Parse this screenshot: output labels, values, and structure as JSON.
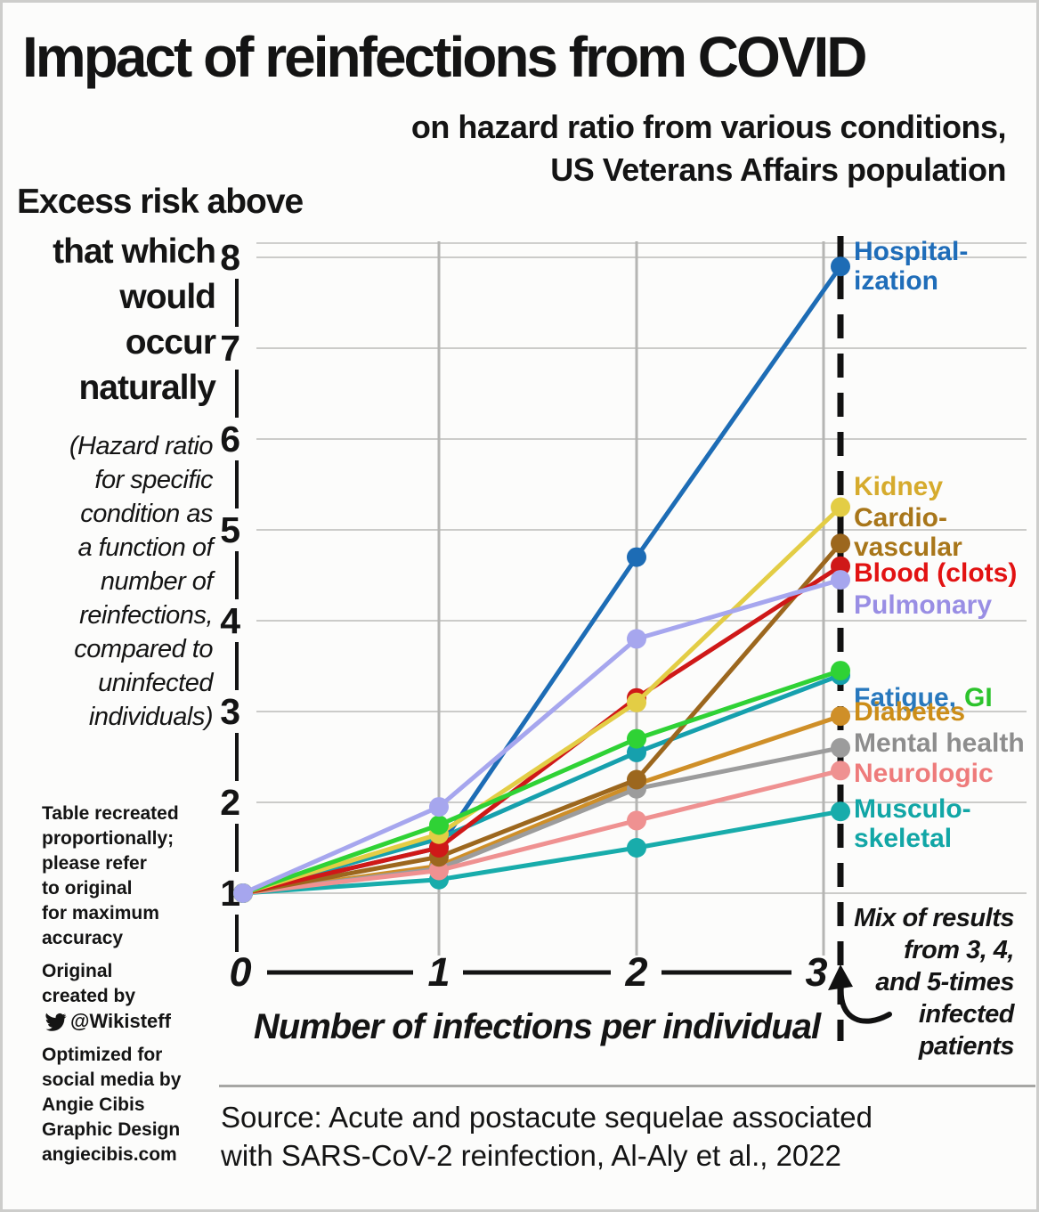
{
  "header": {
    "title": "Impact of reinfections from COVID",
    "subtitle": "on hazard ratio from various conditions,\nUS Veterans Affairs population"
  },
  "y_axis": {
    "title_line1": "Excess risk above",
    "title_rest": "that which\nwould\noccur\nnaturally",
    "subtitle": "(Hazard ratio\nfor specific\ncondition as\na function of\nnumber of\nreinfections,\ncompared to\nuninfected\nindividuals)"
  },
  "x_axis": {
    "title": "Number of infections per individual"
  },
  "notes": {
    "accuracy": "Table recreated\nproportionally;\nplease refer\nto original\nfor maximum\naccuracy",
    "original_credit": "Original\ncreated by",
    "twitter_handle": "@Wikisteff",
    "optimized": "Optimized for\nsocial media by\nAngie Cibis\nGraphic Design\nangiecibis.com",
    "mix": "Mix of results\nfrom 3, 4,\nand 5-times\ninfected\npatients"
  },
  "source": {
    "line1": "Source: Acute and postacute sequelae associated",
    "line2": "with SARS-CoV-2 reinfection, Al-Aly et al., 2022"
  },
  "chart_data": {
    "type": "line",
    "x": [
      0,
      1,
      2,
      3
    ],
    "x_tick_labels": [
      "0",
      "1",
      "2",
      "3"
    ],
    "y_ticks": [
      1,
      2,
      3,
      4,
      5,
      6,
      7,
      8
    ],
    "ylim": [
      1,
      8.2
    ],
    "grid": true,
    "legend_position": "right",
    "x_note": "Values at x=3 are a mix of results from 3, 4, and 5-times infected patients (dashed line)",
    "series": [
      {
        "name": "Hospitalization",
        "label": "Hospital-\nization",
        "color": "#1d6cb5",
        "label_color": "#1f6db9",
        "values": [
          1,
          1.5,
          4.7,
          7.9
        ]
      },
      {
        "name": "Diabetes",
        "label": "Diabetes",
        "color": "#cf8f28",
        "label_color": "#cc8d18",
        "values": [
          1,
          1.3,
          2.2,
          2.95
        ]
      },
      {
        "name": "Mental health",
        "label": "Mental health",
        "color": "#9c9c9c",
        "label_color": "#8d8d8d",
        "values": [
          1,
          1.27,
          2.15,
          2.6
        ]
      },
      {
        "name": "Fatigue",
        "label": "Fatigue,",
        "color": "#16a0ad",
        "label_color": "#2878bd",
        "values": [
          1,
          1.6,
          2.55,
          3.4
        ]
      },
      {
        "name": "Musculoskeletal",
        "label": "Musculo-\nskeletal",
        "color": "#18acab",
        "label_color": "#12a6a6",
        "values": [
          1,
          1.15,
          1.5,
          1.9
        ]
      },
      {
        "name": "Neurologic",
        "label": "Neurologic",
        "color": "#ef9191",
        "label_color": "#ee7b7b",
        "values": [
          1,
          1.25,
          1.8,
          2.35
        ]
      },
      {
        "name": "Cardiovascular",
        "label": "Cardio-\nvascular",
        "color": "#9c671e",
        "label_color": "#a8761a",
        "values": [
          1,
          1.4,
          2.25,
          4.85
        ]
      },
      {
        "name": "Blood (clots)",
        "label": "Blood (clots)",
        "color": "#cf1818",
        "label_color": "#e21212",
        "values": [
          1,
          1.5,
          3.15,
          4.6
        ]
      },
      {
        "name": "Kidney",
        "label": "Kidney",
        "color": "#e3cd45",
        "label_color": "#d6ab2d",
        "values": [
          1,
          1.65,
          3.1,
          5.25
        ]
      },
      {
        "name": "GI",
        "label": "GI",
        "color": "#2fd235",
        "label_color": "#2cc32c",
        "values": [
          1,
          1.75,
          2.7,
          3.45
        ]
      },
      {
        "name": "Pulmonary",
        "label": "Pulmonary",
        "color": "#a6a6ee",
        "label_color": "#998ee4",
        "values": [
          1,
          1.95,
          3.8,
          4.45
        ]
      }
    ]
  }
}
